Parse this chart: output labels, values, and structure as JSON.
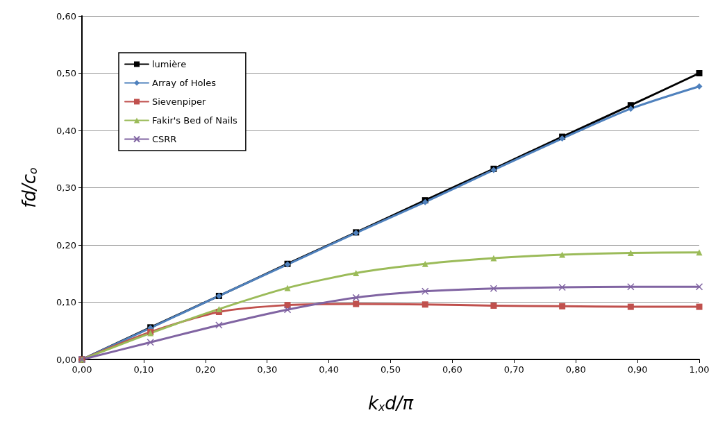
{
  "chart_data": {
    "type": "line",
    "xlabel": "k$_{x}$d/π",
    "ylabel": "fd/c$_{o}$",
    "x": [
      0,
      0.111,
      0.222,
      0.333,
      0.444,
      0.556,
      0.667,
      0.778,
      0.889,
      1
    ],
    "series": [
      {
        "name": "lumière",
        "color": "#000000",
        "marker": "square",
        "values": [
          0,
          0.056,
          0.111,
          0.167,
          0.222,
          0.278,
          0.333,
          0.389,
          0.444,
          0.5
        ]
      },
      {
        "name": "Array of Holes",
        "color": "#4f81bd",
        "marker": "diamond",
        "values": [
          0,
          0.055,
          0.111,
          0.166,
          0.221,
          0.275,
          0.331,
          0.386,
          0.438,
          0.477
        ]
      },
      {
        "name": "Sievenpiper",
        "color": "#c0504d",
        "marker": "square",
        "values": [
          0,
          0.048,
          0.083,
          0.095,
          0.097,
          0.096,
          0.094,
          0.093,
          0.092,
          0.092
        ]
      },
      {
        "name": "Fakir's Bed of Nails",
        "color": "#9bbb59",
        "marker": "triangle",
        "values": [
          0,
          0.046,
          0.088,
          0.125,
          0.151,
          0.167,
          0.177,
          0.183,
          0.186,
          0.187
        ]
      },
      {
        "name": "CSRR",
        "color": "#8064a2",
        "marker": "cross",
        "values": [
          0,
          0.03,
          0.06,
          0.087,
          0.108,
          0.119,
          0.124,
          0.126,
          0.127,
          0.127
        ]
      }
    ],
    "xlim": [
      0,
      1
    ],
    "xticks": [
      {
        "value": 0,
        "label": "0,00"
      },
      {
        "value": 0.1,
        "label": "0,10"
      },
      {
        "value": 0.2,
        "label": "0,20"
      },
      {
        "value": 0.3,
        "label": "0,30"
      },
      {
        "value": 0.4,
        "label": "0,40"
      },
      {
        "value": 0.5,
        "label": "0,50"
      },
      {
        "value": 0.6,
        "label": "0,60"
      },
      {
        "value": 0.7,
        "label": "0,70"
      },
      {
        "value": 0.8,
        "label": "0,80"
      },
      {
        "value": 0.9,
        "label": "0,90"
      },
      {
        "value": 1,
        "label": "1,00"
      }
    ],
    "ylim": [
      0,
      0.6
    ],
    "yticks": [
      {
        "value": 0,
        "label": "0,00"
      },
      {
        "value": 0.1,
        "label": "0,10"
      },
      {
        "value": 0.2,
        "label": "0,20"
      },
      {
        "value": 0.3,
        "label": "0,30"
      },
      {
        "value": 0.4,
        "label": "0,40"
      },
      {
        "value": 0.5,
        "label": "0,50"
      },
      {
        "value": 0.6,
        "label": "0,60"
      }
    ],
    "grid": "y",
    "legend": "top left",
    "line_style": "solid"
  }
}
